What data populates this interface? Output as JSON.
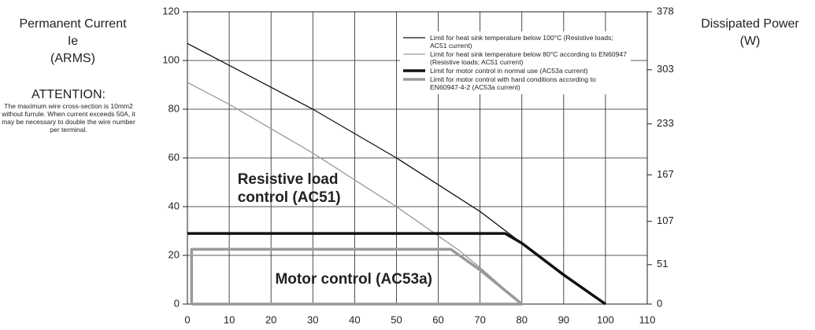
{
  "chart_data": {
    "type": "line",
    "ylabel": [
      "Permanent Current",
      "Ie",
      "(ARMS)"
    ],
    "y2label": [
      "Dissipated Power",
      "(W)"
    ],
    "note_title": "ATTENTION:",
    "note": "The maximum wire cross-section is 10mm2 without furrule. When current exceeds 50A, it may be necessary to double the wire number per terminal.",
    "annotations": [
      {
        "lines": [
          "Resistive load",
          "control (AC51)"
        ],
        "x": 12,
        "y": 51
      },
      {
        "lines": [
          "Motor control (AC53a)"
        ],
        "x": 21,
        "y": 10
      }
    ],
    "xlim": [
      0,
      110
    ],
    "xticks": [
      0,
      10,
      20,
      30,
      40,
      50,
      60,
      70,
      80,
      90,
      100,
      110
    ],
    "ylim": [
      0,
      120
    ],
    "yticks": [
      0,
      20,
      40,
      60,
      80,
      100,
      120
    ],
    "y2lim": [
      0,
      378
    ],
    "y2ticks": [
      0,
      51,
      107,
      167,
      233,
      303,
      378
    ],
    "grid": true,
    "series": [
      {
        "name": "Limit for heat sink temperature below 100°C (Resistive loads; AC51 current)",
        "color": "#111111",
        "line_width": 1.3,
        "x": [
          0,
          10,
          20,
          30,
          40,
          50,
          60,
          70,
          80,
          90,
          100
        ],
        "values": [
          107,
          98,
          89,
          80,
          70,
          60,
          49,
          38,
          25,
          12,
          0
        ]
      },
      {
        "name": "Limit for heat sink temperature below 80°C according to EN60947 (Resistive loads; AC51 current)",
        "color": "#999999",
        "line_width": 1.3,
        "x": [
          0,
          10,
          20,
          30,
          40,
          50,
          60,
          65,
          70,
          80
        ],
        "values": [
          91,
          82,
          72,
          62,
          51,
          40,
          28,
          22,
          15,
          0
        ]
      },
      {
        "name": "Limit for motor control in normal use (AC53a current)",
        "color": "#111111",
        "line_width": 3.5,
        "x": [
          0,
          76,
          80,
          90,
          100
        ],
        "values": [
          29,
          29,
          25,
          12,
          0
        ]
      },
      {
        "name": "Limit for motor control with hard conditions according to EN60947-4-2 (AC53a current)",
        "color": "#999999",
        "line_width": 3.5,
        "x": [
          1,
          1,
          63,
          70,
          80,
          1
        ],
        "values": [
          0,
          22.5,
          22.5,
          14,
          0,
          0
        ]
      }
    ]
  }
}
